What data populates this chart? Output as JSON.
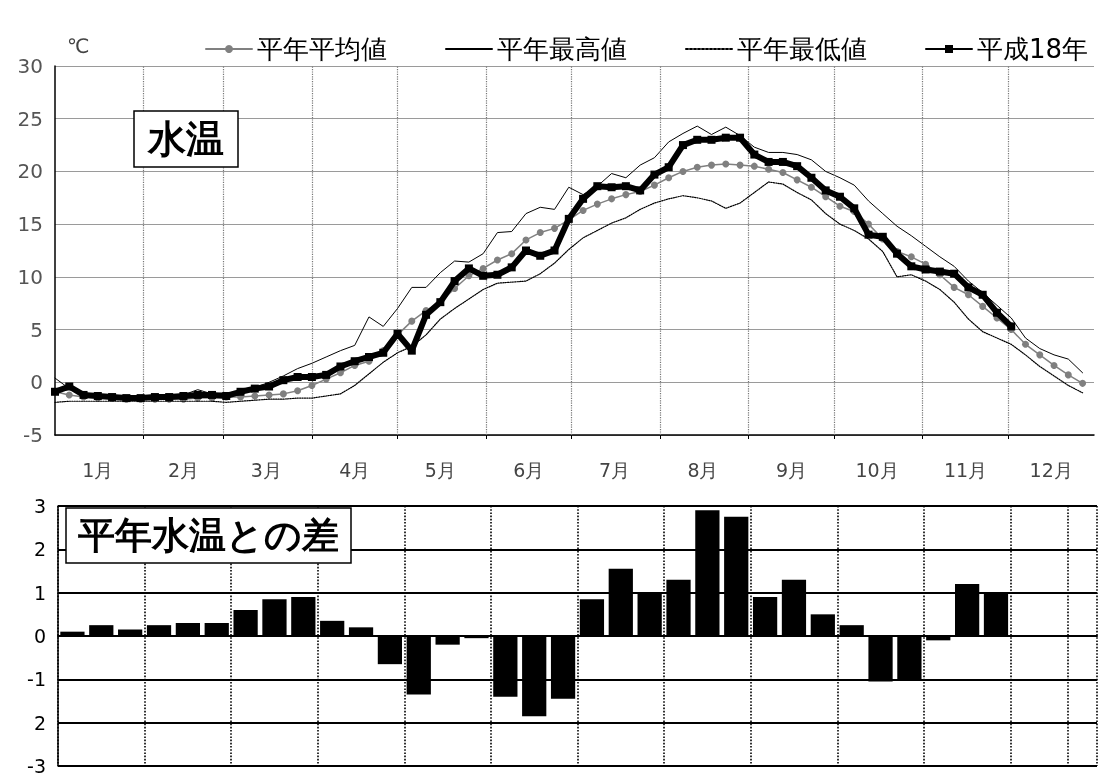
{
  "chart_data": [
    {
      "type": "line",
      "title": "水温",
      "ylabel": "℃",
      "x": [
        "--01-01",
        "--01-06",
        "--01-11",
        "--01-16",
        "--01-21",
        "--01-26",
        "--01-31",
        "--02-05",
        "--02-10",
        "--02-15",
        "--02-20",
        "--02-25",
        "--03-02",
        "--03-07",
        "--03-12",
        "--03-17",
        "--03-22",
        "--03-27",
        "--04-01",
        "--04-06",
        "--04-11",
        "--04-16",
        "--04-21",
        "--04-26",
        "--05-01",
        "--05-06",
        "--05-11",
        "--05-16",
        "--05-21",
        "--05-26",
        "--05-31",
        "--06-05",
        "--06-10",
        "--06-15",
        "--06-20",
        "--06-25",
        "--06-30",
        "--07-05",
        "--07-10",
        "--07-15",
        "--07-20",
        "--07-25",
        "--07-30",
        "--08-04",
        "--08-09",
        "--08-14",
        "--08-19",
        "--08-24",
        "--08-29",
        "--09-03",
        "--09-08",
        "--09-13",
        "--09-18",
        "--09-23",
        "--09-28",
        "--10-03",
        "--10-08",
        "--10-13",
        "--10-18",
        "--10-23",
        "--10-28",
        "--11-02",
        "--11-07",
        "--11-12",
        "--11-17",
        "--11-22",
        "--11-27",
        "--12-02",
        "--12-07",
        "--12-12",
        "--12-17",
        "--12-22",
        "--12-27"
      ],
      "xlim": [
        "--01-01",
        "--12-31"
      ],
      "xticks": [
        {
          "value": "--01-16",
          "label": "1月"
        },
        {
          "value": "--02-01",
          "label": null
        },
        {
          "value": "--02-15",
          "label": "2月"
        },
        {
          "value": "--03-01",
          "label": null
        },
        {
          "value": "--03-16",
          "label": "3月"
        },
        {
          "value": "--04-01",
          "label": null
        },
        {
          "value": "--04-16",
          "label": "4月"
        },
        {
          "value": "--05-01",
          "label": null
        },
        {
          "value": "--05-16",
          "label": "5月"
        },
        {
          "value": "--06-01",
          "label": null
        },
        {
          "value": "--06-16",
          "label": "6月"
        },
        {
          "value": "--07-01",
          "label": null
        },
        {
          "value": "--07-16",
          "label": "7月"
        },
        {
          "value": "--08-01",
          "label": null
        },
        {
          "value": "--08-16",
          "label": "8月"
        },
        {
          "value": "--09-01",
          "label": null
        },
        {
          "value": "--09-16",
          "label": "9月"
        },
        {
          "value": "--10-01",
          "label": null
        },
        {
          "value": "--10-16",
          "label": "10月"
        },
        {
          "value": "--11-01",
          "label": null
        },
        {
          "value": "--11-16",
          "label": "11月"
        },
        {
          "value": "--12-01",
          "label": null
        },
        {
          "value": "--12-16",
          "label": "12月"
        }
      ],
      "ylim": [
        -5,
        30
      ],
      "yticks": [
        -5,
        0,
        5,
        10,
        15,
        20,
        25,
        30
      ],
      "grid": true,
      "legend": "top",
      "series": [
        {
          "name": "平年平均値",
          "color": "#808080",
          "marker": "circle",
          "line_style": "solid",
          "values": [
            -0.9,
            -1.2,
            -1.4,
            -1.5,
            -1.5,
            -1.6,
            -1.6,
            -1.6,
            -1.6,
            -1.6,
            -1.5,
            -1.5,
            -1.4,
            -1.4,
            -1.3,
            -1.2,
            -1.1,
            -0.8,
            -0.3,
            0.3,
            0.9,
            1.6,
            2.0,
            3.0,
            4.5,
            5.8,
            6.8,
            7.6,
            8.9,
            10.1,
            10.8,
            11.6,
            12.2,
            13.5,
            14.2,
            14.6,
            15.4,
            16.3,
            16.9,
            17.4,
            17.8,
            18.1,
            18.7,
            19.4,
            20.0,
            20.4,
            20.6,
            20.7,
            20.6,
            20.5,
            20.2,
            19.9,
            19.2,
            18.5,
            17.6,
            16.7,
            16.2,
            15.0,
            13.6,
            12.4,
            11.9,
            11.2,
            10.2,
            9.0,
            8.3,
            7.2,
            6.1,
            5.0,
            3.6,
            2.6,
            1.6,
            0.7,
            -0.1
          ]
        },
        {
          "name": "平年最高値",
          "color": "#000000",
          "marker": "none",
          "line_style": "solid",
          "values": [
            0.4,
            -0.6,
            -1.1,
            -1.3,
            -1.4,
            -1.4,
            -1.4,
            -1.4,
            -1.3,
            -1.2,
            -0.7,
            -1.1,
            -1.0,
            -0.9,
            -0.5,
            0.0,
            0.6,
            1.3,
            1.8,
            2.4,
            3.0,
            3.5,
            6.2,
            5.3,
            7.0,
            9.0,
            9.0,
            10.4,
            11.5,
            11.4,
            12.2,
            14.2,
            14.3,
            16.0,
            16.6,
            16.4,
            18.5,
            17.8,
            18.6,
            19.8,
            19.4,
            20.6,
            21.3,
            22.8,
            23.6,
            24.3,
            23.5,
            24.2,
            23.4,
            22.3,
            21.8,
            21.8,
            21.6,
            21.1,
            20.0,
            19.4,
            18.7,
            17.2,
            16.0,
            14.8,
            13.9,
            12.9,
            11.9,
            11.0,
            9.6,
            8.5,
            7.3,
            6.1,
            4.2,
            3.2,
            2.6,
            2.2,
            0.9
          ]
        },
        {
          "name": "平年最低値",
          "color": "#000000",
          "marker": "none",
          "line_style": "dotted",
          "values": [
            -1.9,
            -1.8,
            -1.8,
            -1.8,
            -1.8,
            -1.8,
            -1.8,
            -1.8,
            -1.8,
            -1.8,
            -1.8,
            -1.8,
            -1.9,
            -1.8,
            -1.7,
            -1.6,
            -1.6,
            -1.5,
            -1.5,
            -1.3,
            -1.1,
            -0.3,
            0.8,
            1.9,
            2.8,
            3.4,
            4.5,
            6.0,
            7.0,
            7.9,
            8.8,
            9.4,
            9.5,
            9.6,
            10.3,
            11.3,
            12.6,
            13.7,
            14.4,
            15.1,
            15.6,
            16.4,
            17.0,
            17.4,
            17.7,
            17.5,
            17.2,
            16.5,
            17.0,
            18.0,
            19.0,
            18.8,
            18.0,
            17.3,
            16.0,
            15.0,
            14.4,
            13.6,
            12.4,
            10.0,
            10.2,
            9.6,
            8.8,
            7.6,
            6.0,
            4.8,
            4.2,
            3.6,
            2.6,
            1.5,
            0.6,
            -0.3,
            -1.0
          ]
        },
        {
          "name": "平成18年",
          "color": "#000000",
          "marker": "square",
          "line_style": "solid",
          "values": [
            -0.9,
            -0.4,
            -1.2,
            -1.3,
            -1.4,
            -1.5,
            -1.5,
            -1.4,
            -1.4,
            -1.3,
            -1.2,
            -1.2,
            -1.3,
            -0.9,
            -0.6,
            -0.4,
            0.2,
            0.5,
            0.5,
            0.7,
            1.5,
            2.0,
            2.4,
            2.8,
            4.6,
            3.0,
            6.4,
            7.6,
            9.6,
            10.8,
            10.1,
            10.2,
            10.9,
            12.5,
            12.0,
            12.5,
            15.5,
            17.4,
            18.6,
            18.5,
            18.6,
            18.2,
            19.7,
            20.4,
            22.5,
            23.0,
            23.0,
            23.2,
            23.2,
            21.6,
            20.9,
            20.9,
            20.5,
            19.4,
            18.2,
            17.6,
            16.5,
            14.0,
            13.8,
            12.2,
            11.0,
            10.7,
            10.5,
            10.3,
            9.0,
            8.3,
            6.6,
            5.3,
            null,
            null,
            null,
            null,
            null
          ]
        }
      ]
    },
    {
      "type": "bar",
      "title": "平年水温との差",
      "categories": [
        null,
        null,
        null,
        null,
        null,
        null,
        null,
        null,
        null,
        null,
        null,
        null,
        null,
        null,
        null,
        null,
        null,
        null,
        null,
        null,
        null,
        null,
        null,
        null,
        null,
        null,
        null,
        null,
        null,
        null,
        null,
        null,
        null,
        null,
        null,
        null
      ],
      "values": [
        0.1,
        0.25,
        0.15,
        0.25,
        0.3,
        0.3,
        0.6,
        0.85,
        0.9,
        0.35,
        0.2,
        -0.65,
        -1.35,
        -0.2,
        -0.05,
        -1.4,
        -1.85,
        -1.45,
        0.85,
        1.55,
        1.0,
        1.3,
        2.9,
        2.75,
        0.9,
        1.3,
        0.5,
        0.25,
        -1.05,
        -1.0,
        -0.1,
        1.2,
        1.0,
        null,
        null,
        null
      ],
      "color": "#000000",
      "ylim": [
        -3,
        3
      ],
      "yticks": [
        -3,
        {
          "value": -2,
          "label": "2"
        },
        -1,
        0,
        1,
        2,
        3
      ],
      "grid": true,
      "tick_labels": "y"
    }
  ]
}
